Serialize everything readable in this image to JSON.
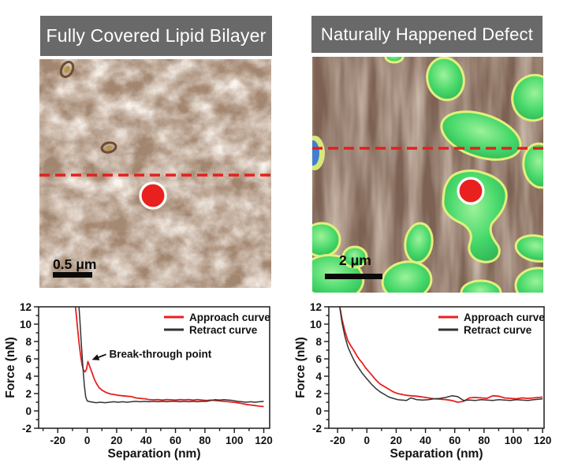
{
  "panels": [
    {
      "title": "Fully Covered Lipid Bilayer",
      "scale_bar_label": "0.5 μm"
    },
    {
      "title": "Naturally Happened Defect",
      "scale_bar_label": "2 μm"
    }
  ],
  "colors": {
    "title_bar_bg": "#696969",
    "title_bar_text": "#ffffff",
    "approach_curve": "#e8211f",
    "retract_curve": "#333333",
    "dashed_section_line": "#e51f1f",
    "probe_marker_fill": "#e8211f",
    "probe_marker_ring": "#ffffff",
    "afm_bilayer_base": "#a28670",
    "afm_defect_base": "#7d6253",
    "afm_patch_green": "#3ed168",
    "afm_patch_rim": "#e4ef7c"
  },
  "chart_data": [
    {
      "type": "line",
      "title": "",
      "xlabel": "Separation (nm)",
      "ylabel": "Force (nN)",
      "xlim": [
        -33,
        124
      ],
      "ylim": [
        -2,
        12
      ],
      "xticks": [
        -20,
        0,
        20,
        40,
        60,
        80,
        100,
        120
      ],
      "yticks": [
        -2,
        0,
        2,
        4,
        6,
        8,
        10,
        12
      ],
      "x_minor_ticks": [
        -30,
        -10,
        10,
        30,
        50,
        70,
        90,
        110
      ],
      "y_minor_ticks": [
        -1,
        1,
        3,
        5,
        7,
        9,
        11
      ],
      "grid": false,
      "legend_position": "top-right",
      "legend": [
        "Approach curve",
        "Retract curve"
      ],
      "annotation": {
        "text": "Break-through point",
        "arrow_to": [
          0.5,
          5.7
        ]
      },
      "series": [
        {
          "name": "Approach curve",
          "color": "#e8211f",
          "x": [
            -8.5,
            -7.5,
            -6.5,
            -5.5,
            -4.5,
            -3.5,
            -2.5,
            -1.5,
            -0.5,
            0.5,
            2,
            3.5,
            5,
            6.5,
            8,
            10,
            12,
            14,
            16,
            18,
            21,
            24,
            27,
            30,
            33,
            36,
            39,
            42,
            45,
            48,
            51,
            54,
            57,
            60,
            63,
            66,
            69,
            72,
            75,
            78,
            81,
            84,
            87,
            90,
            93,
            96,
            99,
            102,
            105,
            108,
            111,
            114,
            117,
            120
          ],
          "y": [
            13,
            11.2,
            9.4,
            7.8,
            6.4,
            5.3,
            4.7,
            4.5,
            4.8,
            5.7,
            5.0,
            4.3,
            3.6,
            3.1,
            2.7,
            2.4,
            2.2,
            2.05,
            1.95,
            1.9,
            1.8,
            1.75,
            1.7,
            1.65,
            1.5,
            1.45,
            1.4,
            1.3,
            1.28,
            1.3,
            1.25,
            1.3,
            1.28,
            1.25,
            1.3,
            1.28,
            1.3,
            1.25,
            1.3,
            1.25,
            1.2,
            1.25,
            1.2,
            1.15,
            1.1,
            1.05,
            1.0,
            0.95,
            0.85,
            0.75,
            0.68,
            0.62,
            0.55,
            0.5
          ]
        },
        {
          "name": "Retract curve",
          "color": "#333333",
          "x": [
            -6,
            -5,
            -4,
            -3,
            -2,
            -1,
            0,
            2,
            4,
            6,
            9,
            12,
            15,
            18,
            21,
            24,
            27,
            30,
            33,
            36,
            39,
            42,
            45,
            48,
            51,
            54,
            57,
            60,
            63,
            66,
            69,
            72,
            75,
            78,
            81,
            84,
            87,
            90,
            93,
            96,
            99,
            102,
            105,
            108,
            111,
            114,
            117,
            120
          ],
          "y": [
            13,
            10.5,
            7.8,
            5.2,
            3.0,
            1.6,
            1.15,
            1.05,
            1.0,
            0.95,
            1.0,
            0.95,
            1.0,
            1.05,
            1.0,
            1.05,
            1.0,
            1.05,
            1.1,
            1.05,
            1.1,
            1.05,
            1.1,
            1.05,
            1.1,
            1.05,
            1.1,
            1.1,
            1.05,
            1.1,
            1.05,
            1.1,
            1.05,
            1.1,
            1.1,
            1.2,
            1.3,
            1.25,
            1.3,
            1.25,
            1.2,
            1.1,
            1.05,
            1.0,
            1.05,
            1.0,
            1.05,
            1.1
          ]
        }
      ]
    },
    {
      "type": "line",
      "title": "",
      "xlabel": "Separation (nm)",
      "ylabel": "Force (nN)",
      "xlim": [
        -26,
        121
      ],
      "ylim": [
        -2,
        12
      ],
      "xticks": [
        -20,
        0,
        20,
        40,
        60,
        80,
        100,
        120
      ],
      "yticks": [
        -2,
        0,
        2,
        4,
        6,
        8,
        10,
        12
      ],
      "x_minor_ticks": [
        -10,
        10,
        30,
        50,
        70,
        90,
        110
      ],
      "y_minor_ticks": [
        -1,
        1,
        3,
        5,
        7,
        9,
        11
      ],
      "grid": false,
      "legend_position": "top-right",
      "legend": [
        "Approach curve",
        "Retract curve"
      ],
      "series": [
        {
          "name": "Approach curve",
          "color": "#e8211f",
          "x": [
            -19,
            -17,
            -15,
            -13,
            -11,
            -9,
            -7,
            -5,
            -3,
            -1,
            1,
            3,
            6,
            9,
            12,
            15,
            18,
            21,
            24,
            27,
            30,
            34,
            38,
            42,
            46,
            50,
            54,
            58,
            62,
            66,
            70,
            74,
            78,
            82,
            86,
            90,
            94,
            98,
            102,
            106,
            110,
            114,
            118,
            120
          ],
          "y": [
            12.5,
            10.6,
            9.2,
            8.1,
            7.5,
            7.0,
            6.4,
            5.9,
            5.5,
            5.0,
            4.6,
            4.2,
            3.6,
            3.1,
            2.8,
            2.5,
            2.2,
            2.0,
            1.9,
            1.8,
            1.75,
            1.7,
            1.6,
            1.5,
            1.4,
            1.35,
            1.3,
            1.2,
            1.0,
            1.1,
            1.5,
            1.55,
            1.5,
            1.45,
            1.75,
            1.7,
            1.5,
            1.45,
            1.4,
            1.5,
            1.45,
            1.5,
            1.55,
            1.6
          ]
        },
        {
          "name": "Retract curve",
          "color": "#333333",
          "x": [
            -19,
            -17,
            -15,
            -13,
            -11,
            -9,
            -7,
            -5,
            -3,
            -1,
            1,
            3,
            6,
            9,
            12,
            15,
            18,
            21,
            24,
            27,
            30,
            34,
            38,
            42,
            46,
            50,
            54,
            58,
            62,
            66,
            70,
            74,
            78,
            82,
            86,
            90,
            94,
            98,
            102,
            106,
            110,
            114,
            118,
            120
          ],
          "y": [
            12.5,
            10.2,
            8.6,
            7.4,
            6.6,
            5.9,
            5.3,
            4.8,
            4.3,
            3.9,
            3.5,
            3.1,
            2.6,
            2.2,
            1.9,
            1.6,
            1.45,
            1.3,
            1.25,
            1.2,
            1.5,
            1.3,
            1.25,
            1.3,
            1.4,
            1.45,
            1.55,
            1.75,
            1.65,
            1.2,
            1.25,
            1.2,
            1.3,
            1.25,
            1.2,
            1.3,
            1.25,
            1.2,
            1.3,
            1.25,
            1.2,
            1.3,
            1.35,
            1.4
          ]
        }
      ]
    }
  ]
}
